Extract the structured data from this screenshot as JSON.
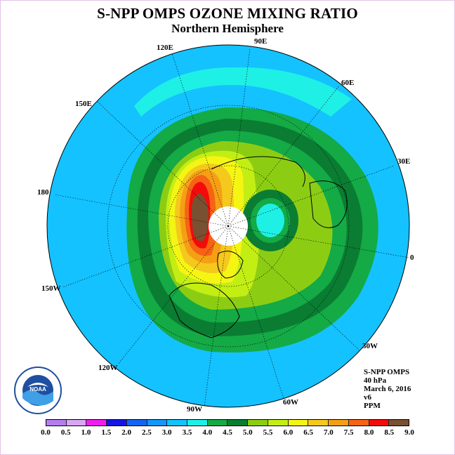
{
  "title": "S-NPP OMPS OZONE MIXING RATIO",
  "subtitle": "Northern Hemisphere",
  "longitude_labels": {
    "e90": "90E",
    "e60": "60E",
    "e30": "30E",
    "zero": "0",
    "w30": "30W",
    "w60": "60W",
    "w90": "90W",
    "w120": "120W",
    "w150": "150W",
    "d180": "180",
    "e150": "150E",
    "e120": "120E"
  },
  "info": {
    "instrument": "S-NPP OMPS",
    "level": "40 hPa",
    "date": "March 6, 2016",
    "version": "v6",
    "units": "PPM"
  },
  "logo_text": "NOAA",
  "colorbar": {
    "ticks": [
      "0.0",
      "0.5",
      "1.0",
      "1.5",
      "2.0",
      "2.5",
      "3.0",
      "3.5",
      "4.0",
      "4.5",
      "5.0",
      "5.5",
      "6.0",
      "6.5",
      "7.0",
      "7.5",
      "8.0",
      "8.5",
      "9.0"
    ],
    "colors": [
      "#b57ef0",
      "#d8a6f2",
      "#ef1fef",
      "#1414e6",
      "#1464f0",
      "#1496ff",
      "#14c2ff",
      "#1ef0e6",
      "#14aa46",
      "#0a7d32",
      "#8ccd14",
      "#c3ee14",
      "#f5f514",
      "#f5c81e",
      "#f5a014",
      "#f56414",
      "#f50a0a",
      "#785032"
    ]
  },
  "map_colors": {
    "ocean_band": "#14c2ff",
    "ring_4_0": "#14aa46",
    "ring_4_5": "#0a7d32",
    "ring_5_0": "#8ccd14",
    "ring_5_5": "#c3ee14",
    "ring_6_0": "#f5f514",
    "ring_6_5": "#f5c81e",
    "ring_7_5": "#f56414",
    "ring_8_5": "#f50a0a",
    "max_9_0": "#785032",
    "low_cell": "#1ef0e6",
    "pole": "#ffffff"
  }
}
